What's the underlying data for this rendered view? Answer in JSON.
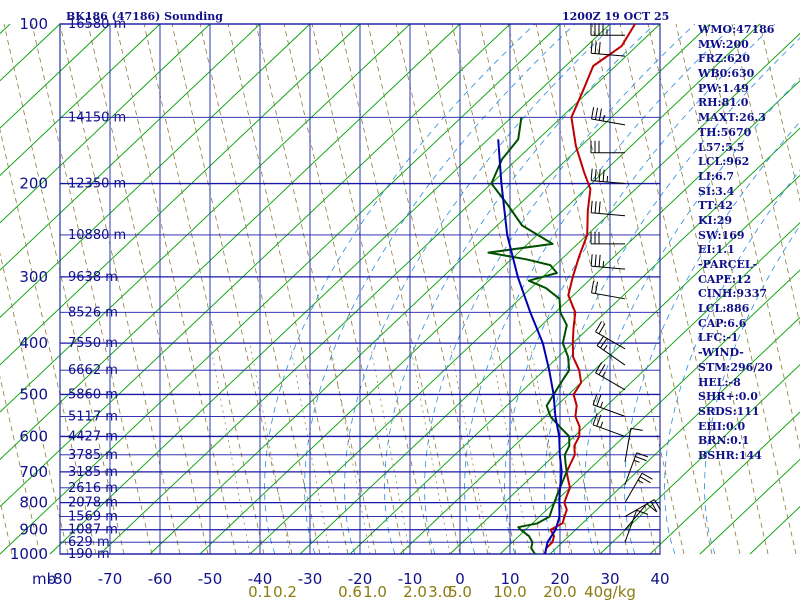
{
  "header": {
    "station": "BK186 (47186) Sounding",
    "time": "1200Z 19 OCT 25"
  },
  "indices": [
    "WMO:47186",
    "MW:200",
    "FRZ:620",
    "WB0:630",
    "PW:1.49",
    "RH:81.0",
    "MAXT:26.3",
    "TH:5670",
    "L57:5.5",
    "LCL:962",
    "LI:6.7",
    "SI:3.4",
    "TT:42",
    "KI:29",
    "SW:169",
    "EI:1.1",
    "-PARCEL-",
    "CAPE:12",
    "CINH:9337",
    "LCL:886",
    "CAP:6.6",
    "LFC:-1",
    "-WIND-",
    "STM:296/20",
    "HEL:-8",
    "SHR+:0.0",
    "SRDS:111",
    "EHI:0.0",
    "BRN:0.1",
    "BSHR:144"
  ],
  "colors": {
    "frame": "#10108a",
    "isobar": "#1818a8",
    "isotherm": "#2a3ab0",
    "skewed_isotherm": "#00a000",
    "dry_adiabat": "#8a7a3a",
    "moist_adiabat": "#2a8ad8",
    "temperature": "#c00000",
    "dewpoint": "#005000",
    "parcel": "#0000b0",
    "mixing_ratio_label": "#8a7a10",
    "wind_barb": "#000000"
  },
  "chart_data": {
    "type": "skew-t log-p sounding",
    "title": "BK186 (47186) Sounding",
    "xlabel": "",
    "ylabel": "mb",
    "pressure_axis_mb": [
      100,
      200,
      300,
      400,
      500,
      600,
      700,
      800,
      900,
      1000
    ],
    "height_labels": [
      {
        "p": 100,
        "label": "16580 m"
      },
      {
        "p": 150,
        "label": "14150 m"
      },
      {
        "p": 200,
        "label": "12350 m"
      },
      {
        "p": 250,
        "label": "10880 m"
      },
      {
        "p": 300,
        "label": "9638 m"
      },
      {
        "p": 350,
        "label": "8526 m"
      },
      {
        "p": 400,
        "label": "7550 m"
      },
      {
        "p": 450,
        "label": "6662 m"
      },
      {
        "p": 500,
        "label": "5860 m"
      },
      {
        "p": 550,
        "label": "5117 m"
      },
      {
        "p": 600,
        "label": "4427 m"
      },
      {
        "p": 650,
        "label": "3785 m"
      },
      {
        "p": 700,
        "label": "3185 m"
      },
      {
        "p": 750,
        "label": "2616 m"
      },
      {
        "p": 800,
        "label": "2078 m"
      },
      {
        "p": 850,
        "label": "1569 m"
      },
      {
        "p": 900,
        "label": "1087 m"
      },
      {
        "p": 950,
        "label": "629 m"
      },
      {
        "p": 1000,
        "label": "190 m"
      }
    ],
    "temperature_axis_c": [
      -80,
      -70,
      -60,
      -50,
      -40,
      -30,
      -20,
      -10,
      0,
      10,
      20,
      30,
      40
    ],
    "temperature_tick_labels": [
      "-80",
      "-70",
      "-60",
      "-50",
      "-40",
      "-30",
      "-20",
      "-10",
      "0",
      "10",
      "20",
      "30",
      "40"
    ],
    "mixing_ratio_labels": [
      "0.1",
      "0.2",
      "0.6",
      "1.0",
      "2.0",
      "3.0",
      "5.0",
      "10.0",
      "20.0",
      "40g/kg"
    ],
    "mixing_ratio_label_x_c": [
      -40,
      -35,
      -22,
      -17,
      -9,
      -4,
      0,
      10,
      20,
      30
    ],
    "moist_adiabat_xc": [
      -37,
      -29,
      -21,
      -13,
      -5,
      3,
      11,
      19,
      27,
      35,
      43,
      51
    ],
    "mixing_ratio_line_xc": [
      -42,
      -34,
      -26,
      -18,
      -10,
      -2,
      6,
      14,
      22
    ],
    "series": [
      {
        "name": "Temperature",
        "points": [
          {
            "p": 100,
            "t": -77
          },
          {
            "p": 110,
            "t": -75
          },
          {
            "p": 120,
            "t": -76.5
          },
          {
            "p": 135,
            "t": -73
          },
          {
            "p": 150,
            "t": -70
          },
          {
            "p": 170,
            "t": -63
          },
          {
            "p": 190,
            "t": -56
          },
          {
            "p": 205,
            "t": -51
          },
          {
            "p": 225,
            "t": -47
          },
          {
            "p": 250,
            "t": -42
          },
          {
            "p": 275,
            "t": -39
          },
          {
            "p": 300,
            "t": -36
          },
          {
            "p": 325,
            "t": -33
          },
          {
            "p": 350,
            "t": -28
          },
          {
            "p": 375,
            "t": -25
          },
          {
            "p": 400,
            "t": -22
          },
          {
            "p": 425,
            "t": -19
          },
          {
            "p": 450,
            "t": -15
          },
          {
            "p": 475,
            "t": -12
          },
          {
            "p": 500,
            "t": -11
          },
          {
            "p": 525,
            "t": -8
          },
          {
            "p": 550,
            "t": -6
          },
          {
            "p": 575,
            "t": -3
          },
          {
            "p": 600,
            "t": -1
          },
          {
            "p": 625,
            "t": 0
          },
          {
            "p": 650,
            "t": 2
          },
          {
            "p": 675,
            "t": 3
          },
          {
            "p": 700,
            "t": 4
          },
          {
            "p": 725,
            "t": 6
          },
          {
            "p": 750,
            "t": 8
          },
          {
            "p": 775,
            "t": 9
          },
          {
            "p": 800,
            "t": 10
          },
          {
            "p": 825,
            "t": 12
          },
          {
            "p": 850,
            "t": 13
          },
          {
            "p": 875,
            "t": 14
          },
          {
            "p": 900,
            "t": 13
          },
          {
            "p": 925,
            "t": 15
          },
          {
            "p": 950,
            "t": 16
          },
          {
            "p": 975,
            "t": 16
          },
          {
            "p": 1000,
            "t": 17
          }
        ]
      },
      {
        "name": "Dewpoint",
        "points": [
          {
            "p": 150,
            "t": -80
          },
          {
            "p": 165,
            "t": -76
          },
          {
            "p": 180,
            "t": -75
          },
          {
            "p": 200,
            "t": -72
          },
          {
            "p": 220,
            "t": -64
          },
          {
            "p": 240,
            "t": -57
          },
          {
            "p": 260,
            "t": -47
          },
          {
            "p": 270,
            "t": -58
          },
          {
            "p": 278,
            "t": -49
          },
          {
            "p": 285,
            "t": -43
          },
          {
            "p": 295,
            "t": -40
          },
          {
            "p": 305,
            "t": -44
          },
          {
            "p": 315,
            "t": -39
          },
          {
            "p": 330,
            "t": -34
          },
          {
            "p": 350,
            "t": -31
          },
          {
            "p": 370,
            "t": -27
          },
          {
            "p": 400,
            "t": -24
          },
          {
            "p": 425,
            "t": -20
          },
          {
            "p": 450,
            "t": -17
          },
          {
            "p": 475,
            "t": -16
          },
          {
            "p": 500,
            "t": -15
          },
          {
            "p": 525,
            "t": -14
          },
          {
            "p": 550,
            "t": -11
          },
          {
            "p": 575,
            "t": -7
          },
          {
            "p": 600,
            "t": -3
          },
          {
            "p": 625,
            "t": -1
          },
          {
            "p": 650,
            "t": 0
          },
          {
            "p": 675,
            "t": 2
          },
          {
            "p": 700,
            "t": 4
          },
          {
            "p": 725,
            "t": 5
          },
          {
            "p": 750,
            "t": 6
          },
          {
            "p": 775,
            "t": 7
          },
          {
            "p": 800,
            "t": 8
          },
          {
            "p": 825,
            "t": 9
          },
          {
            "p": 850,
            "t": 10
          },
          {
            "p": 875,
            "t": 9
          },
          {
            "p": 890,
            "t": 6
          },
          {
            "p": 900,
            "t": 7
          },
          {
            "p": 925,
            "t": 10
          },
          {
            "p": 950,
            "t": 12
          },
          {
            "p": 975,
            "t": 13
          },
          {
            "p": 1000,
            "t": 15
          }
        ]
      },
      {
        "name": "Parcel",
        "points": [
          {
            "p": 165,
            "t": -80
          },
          {
            "p": 200,
            "t": -70
          },
          {
            "p": 250,
            "t": -58
          },
          {
            "p": 300,
            "t": -47
          },
          {
            "p": 350,
            "t": -37
          },
          {
            "p": 400,
            "t": -28
          },
          {
            "p": 450,
            "t": -21
          },
          {
            "p": 500,
            "t": -15
          },
          {
            "p": 550,
            "t": -10
          },
          {
            "p": 600,
            "t": -5
          },
          {
            "p": 650,
            "t": -1
          },
          {
            "p": 700,
            "t": 3
          },
          {
            "p": 750,
            "t": 6
          },
          {
            "p": 800,
            "t": 9
          },
          {
            "p": 850,
            "t": 12
          },
          {
            "p": 900,
            "t": 14
          },
          {
            "p": 950,
            "t": 15
          },
          {
            "p": 1000,
            "t": 17
          }
        ]
      }
    ],
    "wind_barbs": [
      {
        "p": 105,
        "dir": 270,
        "spd": 35
      },
      {
        "p": 115,
        "dir": 275,
        "spd": 30
      },
      {
        "p": 155,
        "dir": 280,
        "spd": 25
      },
      {
        "p": 175,
        "dir": 270,
        "spd": 30
      },
      {
        "p": 200,
        "dir": 275,
        "spd": 35
      },
      {
        "p": 230,
        "dir": 275,
        "spd": 30
      },
      {
        "p": 260,
        "dir": 270,
        "spd": 30
      },
      {
        "p": 290,
        "dir": 275,
        "spd": 25
      },
      {
        "p": 330,
        "dir": 280,
        "spd": 20
      },
      {
        "p": 410,
        "dir": 300,
        "spd": 20
      },
      {
        "p": 440,
        "dir": 305,
        "spd": 15
      },
      {
        "p": 490,
        "dir": 300,
        "spd": 15
      },
      {
        "p": 550,
        "dir": 290,
        "spd": 15
      },
      {
        "p": 600,
        "dir": 290,
        "spd": 15
      },
      {
        "p": 670,
        "dir": 10,
        "spd": 10
      },
      {
        "p": 740,
        "dir": 20,
        "spd": 15
      },
      {
        "p": 800,
        "dir": 30,
        "spd": 15
      },
      {
        "p": 850,
        "dir": 60,
        "spd": 20
      },
      {
        "p": 900,
        "dir": 40,
        "spd": 10
      },
      {
        "p": 950,
        "dir": 20,
        "spd": 10
      }
    ],
    "grid": true
  }
}
